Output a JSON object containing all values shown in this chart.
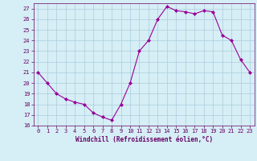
{
  "x": [
    0,
    1,
    2,
    3,
    4,
    5,
    6,
    7,
    8,
    9,
    10,
    11,
    12,
    13,
    14,
    15,
    16,
    17,
    18,
    19,
    20,
    21,
    22,
    23
  ],
  "y": [
    21,
    20,
    19,
    18.5,
    18.2,
    18,
    17.2,
    16.8,
    16.5,
    18,
    20,
    23,
    24,
    26,
    27.2,
    26.8,
    26.7,
    26.5,
    26.8,
    26.7,
    24.5,
    24,
    22.2,
    21
  ],
  "line_color": "#990099",
  "marker": "D",
  "marker_size": 2,
  "bg_color": "#d6eef5",
  "grid_color": "#aaccdd",
  "xlabel": "Windchill (Refroidissement éolien,°C)",
  "xlabel_color": "#660066",
  "tick_color": "#660066",
  "ylim": [
    16,
    27.5
  ],
  "yticks": [
    16,
    17,
    18,
    19,
    20,
    21,
    22,
    23,
    24,
    25,
    26,
    27
  ],
  "xlim": [
    -0.5,
    23.5
  ],
  "xticks": [
    0,
    1,
    2,
    3,
    4,
    5,
    6,
    7,
    8,
    9,
    10,
    11,
    12,
    13,
    14,
    15,
    16,
    17,
    18,
    19,
    20,
    21,
    22,
    23
  ]
}
